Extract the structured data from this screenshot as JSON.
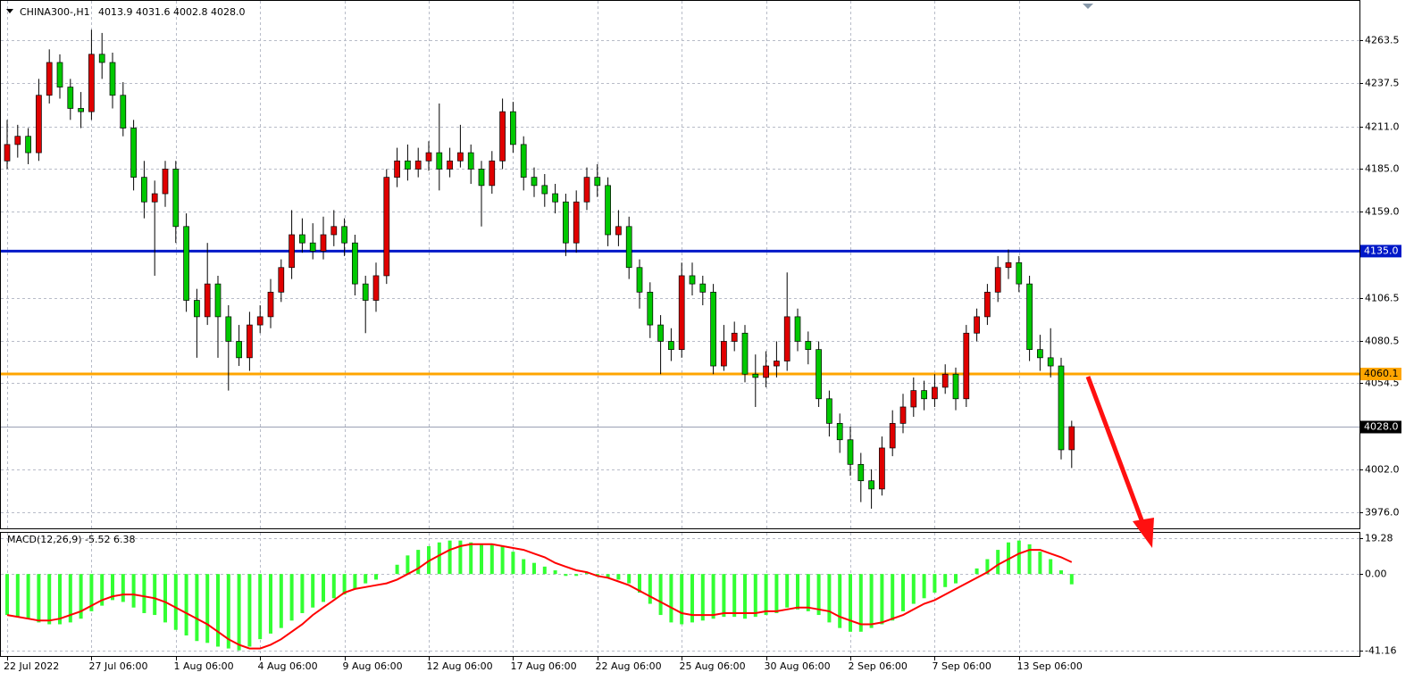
{
  "chart_data": {
    "type": "candlestick",
    "title": "CHINA300-,H1",
    "ohlc_label": "4013.9 4031.6 4002.8 4028.0",
    "up_color": "#e00000",
    "down_color": "#00c800",
    "grid": true,
    "ylim": [
      3966,
      4287
    ],
    "yticks": [
      {
        "value": 3976,
        "label": "3976.0"
      },
      {
        "value": 4002,
        "label": "4002.0"
      },
      4054.5,
      4080.5,
      4106.5,
      {
        "value": 4159,
        "label": "4159.0"
      },
      {
        "value": 4185,
        "label": "4185.0"
      },
      {
        "value": 4211,
        "label": "4211.0"
      },
      4237.5,
      4263.5
    ],
    "hlines": [
      {
        "value": 4135,
        "label": "4135.0",
        "color": "#0018c8"
      },
      {
        "value": 4060.1,
        "label": "4060.1",
        "color": "#ffa500"
      }
    ],
    "last_price": {
      "value": 4028,
      "label": "4028.0"
    },
    "categories": [
      "22 Jul 2022",
      null,
      null,
      null,
      null,
      null,
      null,
      null,
      "27 Jul 06:00",
      null,
      null,
      null,
      null,
      null,
      null,
      null,
      "1 Aug 06:00",
      null,
      null,
      null,
      null,
      null,
      null,
      null,
      "4 Aug 06:00",
      null,
      null,
      null,
      null,
      null,
      null,
      null,
      "9 Aug 06:00",
      null,
      null,
      null,
      null,
      null,
      null,
      null,
      "12 Aug 06:00",
      null,
      null,
      null,
      null,
      null,
      null,
      null,
      "17 Aug 06:00",
      null,
      null,
      null,
      null,
      null,
      null,
      null,
      "22 Aug 06:00",
      null,
      null,
      null,
      null,
      null,
      null,
      null,
      "25 Aug 06:00",
      null,
      null,
      null,
      null,
      null,
      null,
      null,
      "30 Aug 06:00",
      null,
      null,
      null,
      null,
      null,
      null,
      null,
      "2 Sep 06:00",
      null,
      null,
      null,
      null,
      null,
      null,
      null,
      "7 Sep 06:00",
      null,
      null,
      null,
      null,
      null,
      null,
      null,
      "13 Sep 06:00",
      null,
      null,
      null,
      null,
      null
    ],
    "candles": [
      [
        4190,
        4215,
        4185,
        4200
      ],
      [
        4200,
        4212,
        4192,
        4205
      ],
      [
        4205,
        4210,
        4188,
        4195
      ],
      [
        4195,
        4240,
        4190,
        4230
      ],
      [
        4230,
        4258,
        4225,
        4250
      ],
      [
        4250,
        4255,
        4228,
        4235
      ],
      [
        4235,
        4240,
        4215,
        4222
      ],
      [
        4222,
        4232,
        4210,
        4220
      ],
      [
        4220,
        4270,
        4215,
        4255
      ],
      [
        4255,
        4268,
        4240,
        4250
      ],
      [
        4250,
        4256,
        4222,
        4230
      ],
      [
        4230,
        4238,
        4205,
        4210
      ],
      [
        4210,
        4215,
        4172,
        4180
      ],
      [
        4180,
        4190,
        4155,
        4165
      ],
      [
        4165,
        4178,
        4120,
        4170
      ],
      [
        4170,
        4190,
        4162,
        4185
      ],
      [
        4185,
        4190,
        4140,
        4150
      ],
      [
        4150,
        4158,
        4098,
        4105
      ],
      [
        4105,
        4112,
        4070,
        4095
      ],
      [
        4095,
        4140,
        4090,
        4115
      ],
      [
        4115,
        4120,
        4070,
        4095
      ],
      [
        4095,
        4102,
        4050,
        4080
      ],
      [
        4080,
        4090,
        4065,
        4070
      ],
      [
        4070,
        4098,
        4062,
        4090
      ],
      [
        4090,
        4102,
        4085,
        4095
      ],
      [
        4095,
        4118,
        4088,
        4110
      ],
      [
        4110,
        4130,
        4104,
        4125
      ],
      [
        4125,
        4160,
        4118,
        4145
      ],
      [
        4145,
        4155,
        4134,
        4140
      ],
      [
        4140,
        4152,
        4130,
        4135
      ],
      [
        4135,
        4156,
        4130,
        4145
      ],
      [
        4145,
        4160,
        4138,
        4150
      ],
      [
        4150,
        4155,
        4132,
        4140
      ],
      [
        4140,
        4145,
        4108,
        4115
      ],
      [
        4115,
        4120,
        4085,
        4105
      ],
      [
        4105,
        4128,
        4098,
        4120
      ],
      [
        4120,
        4185,
        4115,
        4180
      ],
      [
        4180,
        4198,
        4174,
        4190
      ],
      [
        4190,
        4200,
        4178,
        4185
      ],
      [
        4185,
        4198,
        4180,
        4190
      ],
      [
        4190,
        4202,
        4184,
        4195
      ],
      [
        4195,
        4225,
        4172,
        4185
      ],
      [
        4185,
        4198,
        4180,
        4190
      ],
      [
        4190,
        4212,
        4186,
        4195
      ],
      [
        4195,
        4200,
        4176,
        4185
      ],
      [
        4185,
        4190,
        4150,
        4175
      ],
      [
        4175,
        4196,
        4170,
        4190
      ],
      [
        4190,
        4228,
        4185,
        4220
      ],
      [
        4220,
        4226,
        4195,
        4200
      ],
      [
        4200,
        4205,
        4172,
        4180
      ],
      [
        4180,
        4186,
        4168,
        4175
      ],
      [
        4175,
        4182,
        4162,
        4170
      ],
      [
        4170,
        4176,
        4158,
        4165
      ],
      [
        4165,
        4170,
        4132,
        4140
      ],
      [
        4140,
        4172,
        4134,
        4165
      ],
      [
        4165,
        4186,
        4160,
        4180
      ],
      [
        4180,
        4188,
        4168,
        4175
      ],
      [
        4175,
        4180,
        4138,
        4145
      ],
      [
        4145,
        4160,
        4138,
        4150
      ],
      [
        4150,
        4156,
        4118,
        4125
      ],
      [
        4125,
        4130,
        4100,
        4110
      ],
      [
        4110,
        4116,
        4082,
        4090
      ],
      [
        4090,
        4096,
        4060,
        4080
      ],
      [
        4080,
        4088,
        4068,
        4075
      ],
      [
        4075,
        4128,
        4070,
        4120
      ],
      [
        4120,
        4128,
        4108,
        4115
      ],
      [
        4115,
        4120,
        4102,
        4110
      ],
      [
        4110,
        4115,
        4060,
        4065
      ],
      [
        4065,
        4090,
        4062,
        4080
      ],
      [
        4080,
        4092,
        4074,
        4085
      ],
      [
        4085,
        4090,
        4055,
        4060
      ],
      [
        4060,
        4072,
        4040,
        4058
      ],
      [
        4058,
        4074,
        4052,
        4065
      ],
      [
        4065,
        4080,
        4058,
        4068
      ],
      [
        4068,
        4122,
        4062,
        4095
      ],
      [
        4095,
        4100,
        4074,
        4080
      ],
      [
        4080,
        4086,
        4066,
        4075
      ],
      [
        4075,
        4080,
        4040,
        4045
      ],
      [
        4045,
        4050,
        4022,
        4030
      ],
      [
        4030,
        4036,
        4012,
        4020
      ],
      [
        4020,
        4028,
        3998,
        4005
      ],
      [
        4005,
        4012,
        3982,
        3995
      ],
      [
        3995,
        4002,
        3978,
        3990
      ],
      [
        3990,
        4022,
        3986,
        4015
      ],
      [
        4015,
        4038,
        4010,
        4030
      ],
      [
        4030,
        4048,
        4024,
        4040
      ],
      [
        4040,
        4058,
        4034,
        4050
      ],
      [
        4050,
        4056,
        4038,
        4045
      ],
      [
        4045,
        4060,
        4040,
        4052
      ],
      [
        4052,
        4066,
        4048,
        4060
      ],
      [
        4060,
        4064,
        4038,
        4045
      ],
      [
        4045,
        4090,
        4040,
        4085
      ],
      [
        4085,
        4100,
        4080,
        4095
      ],
      [
        4095,
        4115,
        4090,
        4110
      ],
      [
        4110,
        4132,
        4104,
        4125
      ],
      [
        4125,
        4136,
        4118,
        4128
      ],
      [
        4128,
        4132,
        4110,
        4115
      ],
      [
        4115,
        4120,
        4068,
        4075
      ],
      [
        4075,
        4084,
        4062,
        4070
      ],
      [
        4070,
        4088,
        4058,
        4065
      ],
      [
        4065,
        4070,
        4008,
        4013.9
      ],
      [
        4013.9,
        4031.6,
        4002.8,
        4028
      ]
    ],
    "macd": {
      "label": "MACD(12,26,9) -5.52 6.38",
      "ylim": [
        -41.16,
        19.28
      ],
      "yticks": [
        19.28,
        {
          "value": 0,
          "label": "0.00"
        },
        -41.16
      ],
      "histogram": {
        "color": "#33ff33",
        "values": [
          -22,
          -23,
          -24,
          -26,
          -27,
          -27,
          -26,
          -24,
          -20,
          -17,
          -14,
          -15,
          -18,
          -21,
          -22,
          -26,
          -30,
          -33,
          -36,
          -37,
          -39,
          -40,
          -41,
          -39,
          -35,
          -32,
          -29,
          -25,
          -21,
          -18,
          -15,
          -13,
          -11,
          -8,
          -5,
          -3,
          0,
          5,
          10,
          13,
          15,
          17,
          18,
          18,
          17,
          16,
          16,
          15,
          12,
          8,
          6,
          4,
          2,
          -1,
          -1,
          1,
          -1,
          -2,
          -3,
          -5,
          -10,
          -16,
          -22,
          -26,
          -27,
          -26,
          -25,
          -24,
          -23,
          -23,
          -24,
          -23,
          -22,
          -21,
          -18,
          -19,
          -20,
          -22,
          -26,
          -29,
          -31,
          -31,
          -29,
          -27,
          -25,
          -20,
          -16,
          -13,
          -10,
          -7,
          -5,
          0,
          3,
          8,
          13,
          17,
          18,
          16,
          12,
          8,
          2,
          -5.52
        ]
      },
      "signal": {
        "color": "#ff0000",
        "values": [
          -22,
          -23,
          -24,
          -25,
          -25,
          -24,
          -22,
          -20,
          -17,
          -14,
          -12,
          -11,
          -11,
          -12,
          -13,
          -15,
          -18,
          -21,
          -24,
          -27,
          -31,
          -35,
          -38,
          -40,
          -40,
          -38,
          -35,
          -31,
          -27,
          -22,
          -18,
          -14,
          -10,
          -8,
          -7,
          -6,
          -5,
          -3,
          0,
          3,
          7,
          10,
          13,
          15,
          16,
          16,
          16,
          15,
          14,
          13,
          11,
          9,
          6,
          4,
          2,
          1,
          -1,
          -2,
          -4,
          -6,
          -9,
          -12,
          -15,
          -18,
          -21,
          -22,
          -22,
          -22,
          -21,
          -21,
          -21,
          -21,
          -20,
          -20,
          -19,
          -18,
          -18,
          -19,
          -20,
          -23,
          -25,
          -27,
          -27,
          -26,
          -24,
          -22,
          -19,
          -16,
          -14,
          -11,
          -8,
          -5,
          -2,
          1,
          5,
          8,
          11,
          13,
          13,
          11,
          9,
          6.38
        ]
      }
    }
  }
}
